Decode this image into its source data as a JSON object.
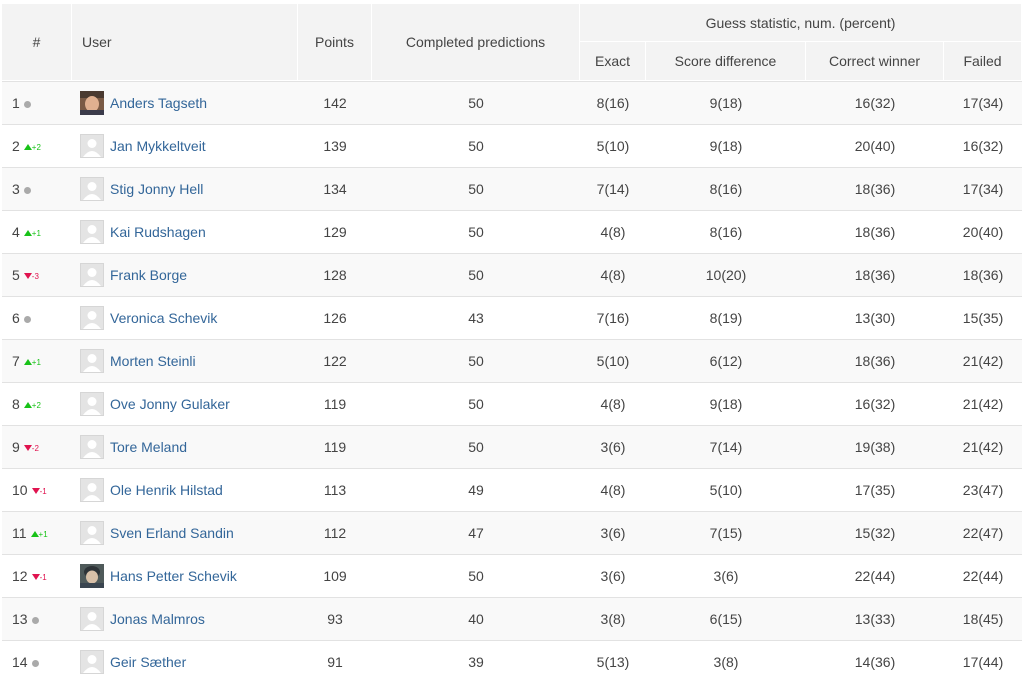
{
  "headers": {
    "rank": "#",
    "user": "User",
    "points": "Points",
    "completed": "Completed predictions",
    "guess_stat": "Guess statistic, num. (percent)",
    "exact": "Exact",
    "score_diff": "Score difference",
    "correct_winner": "Correct winner",
    "failed": "Failed"
  },
  "colors": {
    "up": "#18c218",
    "down": "#e0134f",
    "same": "#aaaaaa",
    "link": "#336699"
  },
  "rows": [
    {
      "rank": "1",
      "trend": "same",
      "change": "",
      "name": "Anders Tagseth",
      "avatar": "photo-man",
      "points": "142",
      "completed": "50",
      "exact": "8(16)",
      "score_diff": "9(18)",
      "correct_winner": "16(32)",
      "failed": "17(34)"
    },
    {
      "rank": "2",
      "trend": "up",
      "change": "+2",
      "name": "Jan Mykkeltveit",
      "avatar": "default",
      "points": "139",
      "completed": "50",
      "exact": "5(10)",
      "score_diff": "9(18)",
      "correct_winner": "20(40)",
      "failed": "16(32)"
    },
    {
      "rank": "3",
      "trend": "same",
      "change": "",
      "name": "Stig Jonny Hell",
      "avatar": "default",
      "points": "134",
      "completed": "50",
      "exact": "7(14)",
      "score_diff": "8(16)",
      "correct_winner": "18(36)",
      "failed": "17(34)"
    },
    {
      "rank": "4",
      "trend": "up",
      "change": "+1",
      "name": "Kai Rudshagen",
      "avatar": "default",
      "points": "129",
      "completed": "50",
      "exact": "4(8)",
      "score_diff": "8(16)",
      "correct_winner": "18(36)",
      "failed": "20(40)"
    },
    {
      "rank": "5",
      "trend": "down",
      "change": "-3",
      "name": "Frank Borge",
      "avatar": "default",
      "points": "128",
      "completed": "50",
      "exact": "4(8)",
      "score_diff": "10(20)",
      "correct_winner": "18(36)",
      "failed": "18(36)"
    },
    {
      "rank": "6",
      "trend": "same",
      "change": "",
      "name": "Veronica Schevik",
      "avatar": "default",
      "points": "126",
      "completed": "43",
      "exact": "7(16)",
      "score_diff": "8(19)",
      "correct_winner": "13(30)",
      "failed": "15(35)"
    },
    {
      "rank": "7",
      "trend": "up",
      "change": "+1",
      "name": "Morten Steinli",
      "avatar": "default",
      "points": "122",
      "completed": "50",
      "exact": "5(10)",
      "score_diff": "6(12)",
      "correct_winner": "18(36)",
      "failed": "21(42)"
    },
    {
      "rank": "8",
      "trend": "up",
      "change": "+2",
      "name": "Ove Jonny Gulaker",
      "avatar": "default",
      "points": "119",
      "completed": "50",
      "exact": "4(8)",
      "score_diff": "9(18)",
      "correct_winner": "16(32)",
      "failed": "21(42)"
    },
    {
      "rank": "9",
      "trend": "down",
      "change": "-2",
      "name": "Tore Meland",
      "avatar": "default",
      "points": "119",
      "completed": "50",
      "exact": "3(6)",
      "score_diff": "7(14)",
      "correct_winner": "19(38)",
      "failed": "21(42)"
    },
    {
      "rank": "10",
      "trend": "down",
      "change": "-1",
      "name": "Ole Henrik Hilstad",
      "avatar": "default",
      "points": "113",
      "completed": "49",
      "exact": "4(8)",
      "score_diff": "5(10)",
      "correct_winner": "17(35)",
      "failed": "23(47)"
    },
    {
      "rank": "11",
      "trend": "up",
      "change": "+1",
      "name": "Sven Erland Sandin",
      "avatar": "default",
      "points": "112",
      "completed": "47",
      "exact": "3(6)",
      "score_diff": "7(15)",
      "correct_winner": "15(32)",
      "failed": "22(47)"
    },
    {
      "rank": "12",
      "trend": "down",
      "change": "-1",
      "name": "Hans Petter Schevik",
      "avatar": "photo-child",
      "points": "109",
      "completed": "50",
      "exact": "3(6)",
      "score_diff": "3(6)",
      "correct_winner": "22(44)",
      "failed": "22(44)"
    },
    {
      "rank": "13",
      "trend": "same",
      "change": "",
      "name": "Jonas Malmros",
      "avatar": "default",
      "points": "93",
      "completed": "40",
      "exact": "3(8)",
      "score_diff": "6(15)",
      "correct_winner": "13(33)",
      "failed": "18(45)"
    },
    {
      "rank": "14",
      "trend": "same",
      "change": "",
      "name": "Geir Sæther",
      "avatar": "default",
      "points": "91",
      "completed": "39",
      "exact": "5(13)",
      "score_diff": "3(8)",
      "correct_winner": "14(36)",
      "failed": "17(44)"
    }
  ]
}
